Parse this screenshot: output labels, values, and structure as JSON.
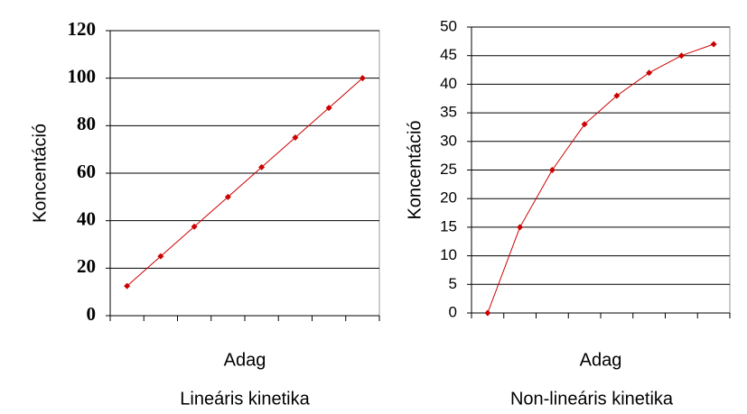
{
  "chart_data": [
    {
      "type": "line",
      "title": "Lineáris kinetika",
      "x_label": "Adag",
      "y_label": "Koncentáció",
      "categories": [
        null,
        null,
        null,
        null,
        null,
        null,
        null,
        null
      ],
      "series": [
        {
          "color": "#cc0000",
          "values": [
            12.5,
            25,
            37.5,
            50,
            62.5,
            75,
            87.5,
            100
          ]
        }
      ],
      "ylim": [
        0,
        120
      ],
      "yticks": [
        0,
        20,
        40,
        60,
        80,
        100,
        120
      ],
      "grid": true
    },
    {
      "type": "line",
      "title": "Non-lineáris kinetika",
      "x_label": "Adag",
      "y_label": "Koncentáció",
      "categories": [
        null,
        null,
        null,
        null,
        null,
        null,
        null,
        null
      ],
      "series": [
        {
          "color": "#cc0000",
          "values": [
            0,
            15,
            25,
            33,
            38,
            42,
            45,
            47
          ]
        }
      ],
      "ylim": [
        0,
        50
      ],
      "yticks": [
        0,
        5,
        10,
        15,
        20,
        25,
        30,
        35,
        40,
        45,
        50
      ],
      "grid": true
    }
  ]
}
